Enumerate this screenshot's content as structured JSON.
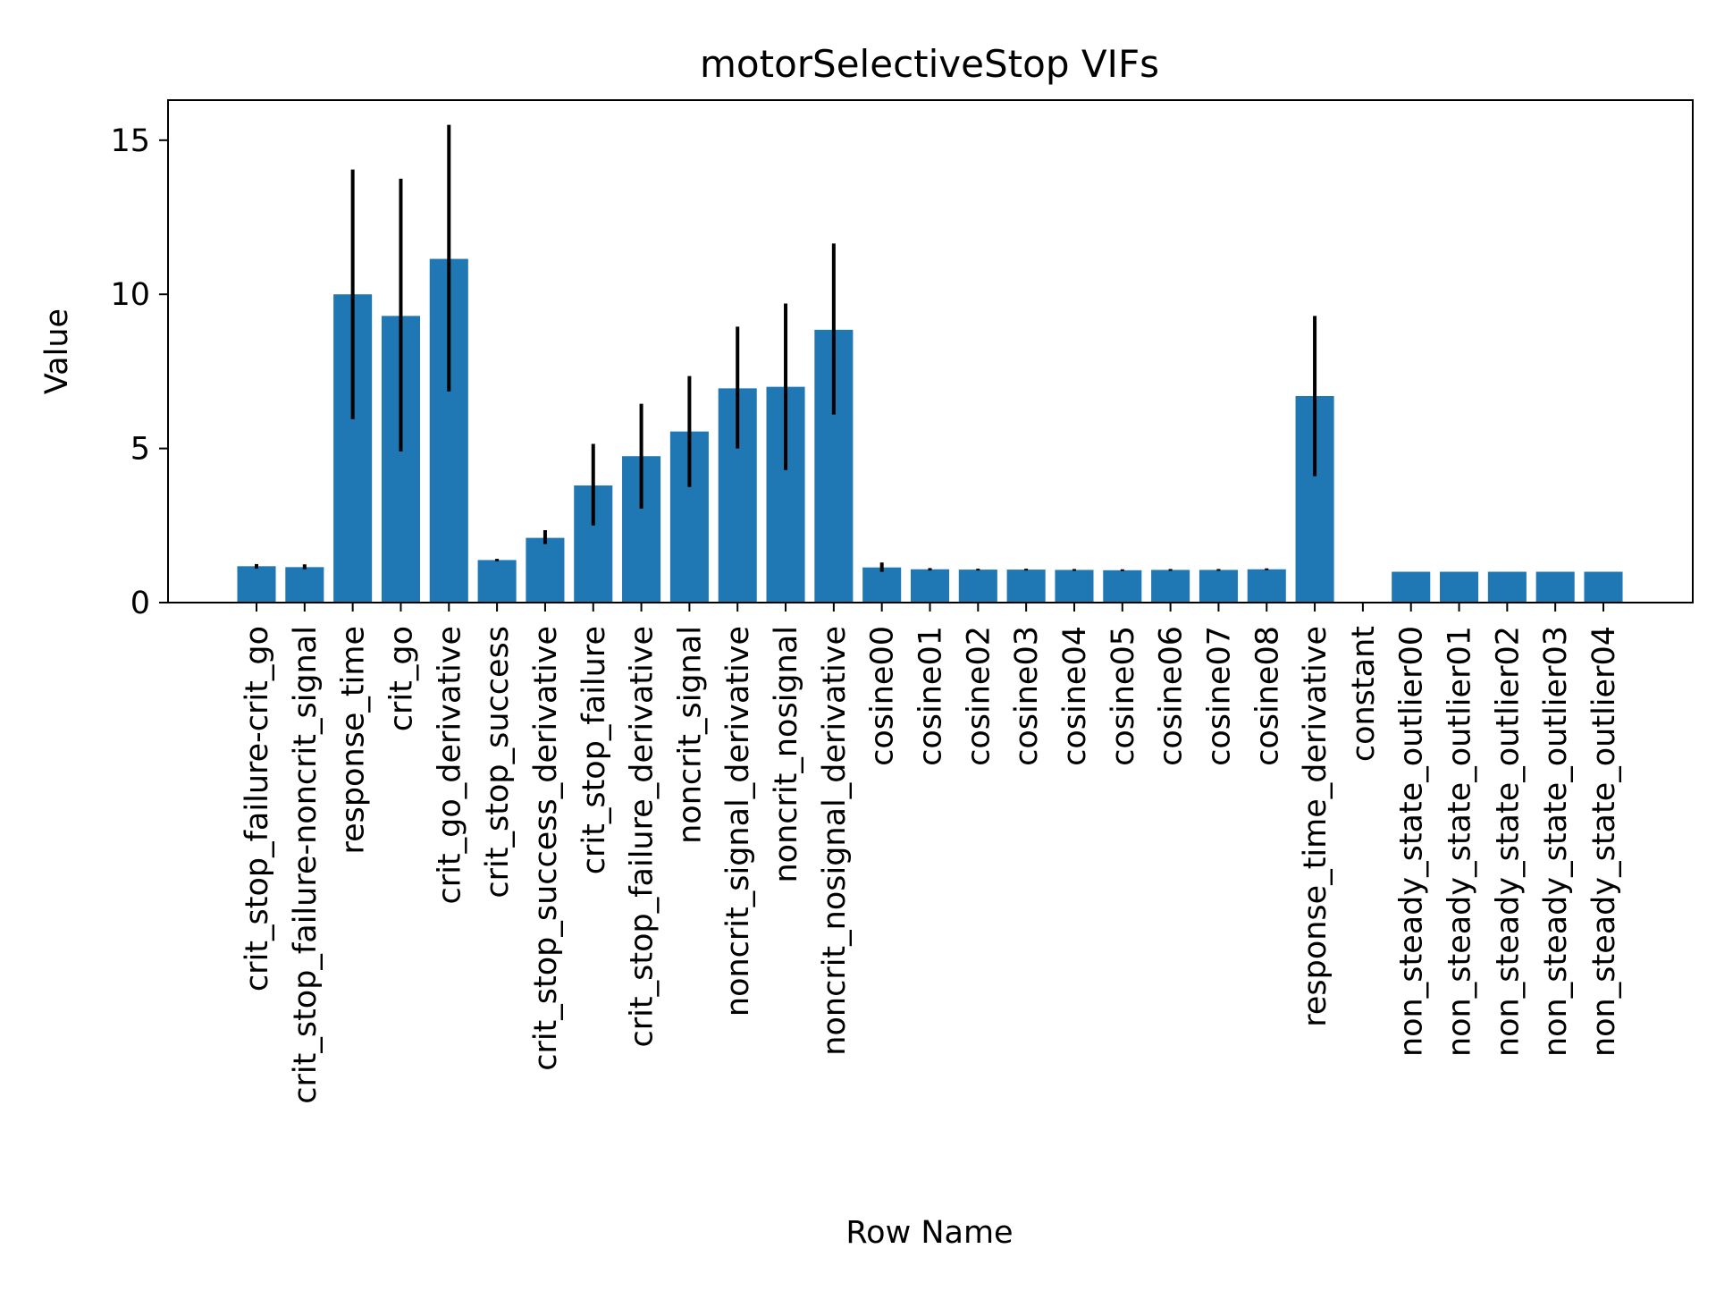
{
  "chart_data": {
    "type": "bar",
    "title": "motorSelectiveStop VIFs",
    "xlabel": "Row Name",
    "ylabel": "Value",
    "ylim": [
      0,
      16.3
    ],
    "yticks": [
      0,
      5,
      10,
      15
    ],
    "grid": false,
    "legend": "none",
    "bar_color": "#1f77b4",
    "error_color": "#000000",
    "categories": [
      "crit_stop_failure-crit_go",
      "crit_stop_failure-noncrit_signal",
      "response_time",
      "crit_go",
      "crit_go_derivative",
      "crit_stop_success",
      "crit_stop_success_derivative",
      "crit_stop_failure",
      "crit_stop_failure_derivative",
      "noncrit_signal",
      "noncrit_signal_derivative",
      "noncrit_nosignal",
      "noncrit_nosignal_derivative",
      "cosine00",
      "cosine01",
      "cosine02",
      "cosine03",
      "cosine04",
      "cosine05",
      "cosine06",
      "cosine07",
      "cosine08",
      "response_time_derivative",
      "constant",
      "non_steady_state_outlier00",
      "non_steady_state_outlier01",
      "non_steady_state_outlier02",
      "non_steady_state_outlier03",
      "non_steady_state_outlier04"
    ],
    "values": [
      1.18,
      1.15,
      10.0,
      9.3,
      11.15,
      1.38,
      2.1,
      3.8,
      4.75,
      5.55,
      6.95,
      7.0,
      8.85,
      1.14,
      1.08,
      1.07,
      1.07,
      1.06,
      1.05,
      1.06,
      1.06,
      1.08,
      6.7,
      0,
      1.0,
      1.0,
      1.0,
      1.0,
      1.0
    ],
    "error_low": [
      1.1,
      1.08,
      5.95,
      4.9,
      6.85,
      1.34,
      1.9,
      2.5,
      3.05,
      3.75,
      5.0,
      4.3,
      6.1,
      1.0,
      1.04,
      1.04,
      1.04,
      1.03,
      1.02,
      1.03,
      1.03,
      1.05,
      4.1,
      0,
      1.0,
      1.0,
      1.0,
      1.0,
      1.0
    ],
    "error_high": [
      1.25,
      1.24,
      14.05,
      13.75,
      15.5,
      1.42,
      2.35,
      5.15,
      6.45,
      7.35,
      8.95,
      9.7,
      11.65,
      1.3,
      1.12,
      1.1,
      1.1,
      1.09,
      1.08,
      1.09,
      1.09,
      1.11,
      9.3,
      0,
      1.0,
      1.0,
      1.0,
      1.0,
      1.0
    ]
  }
}
